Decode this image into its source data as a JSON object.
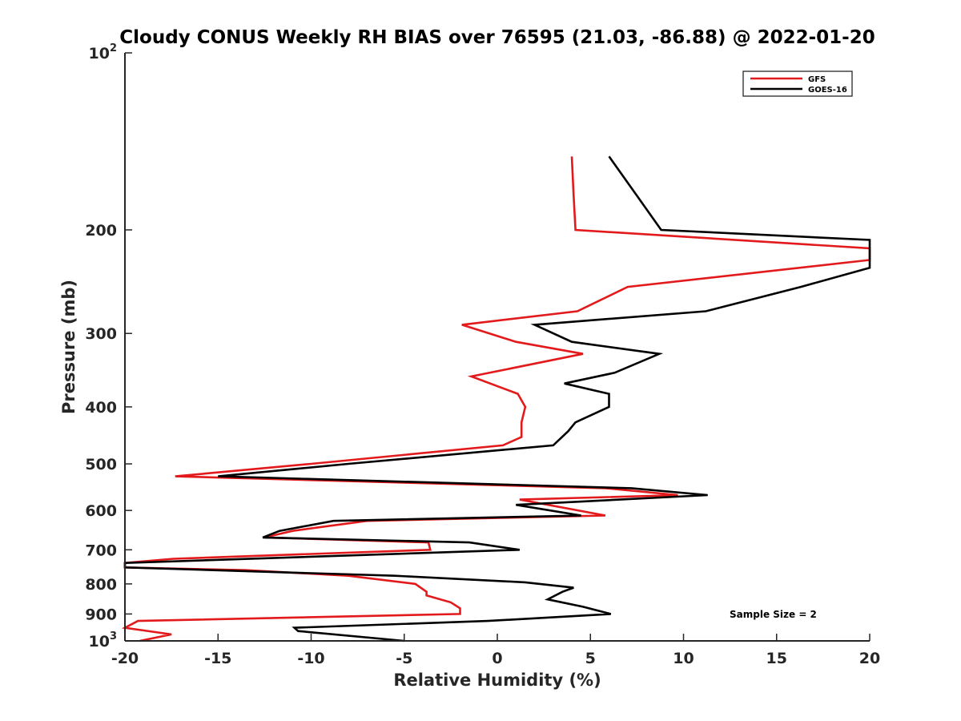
{
  "chart_data": {
    "type": "line",
    "title": "Cloudy CONUS Weekly RH BIAS over 76595 (21.03, -86.88) @ 2022-01-20",
    "xlabel": "Relative Humidity (%)",
    "ylabel": "Pressure (mb)",
    "xlim": [
      -20,
      20
    ],
    "ylim": [
      100,
      1000
    ],
    "yscale": "log",
    "y_reversed": true,
    "xticks": [
      -20,
      -15,
      -10,
      -5,
      0,
      5,
      10,
      15,
      20
    ],
    "xtick_labels": [
      "-20",
      "-15",
      "-10",
      "-5",
      "0",
      "5",
      "10",
      "15",
      "20"
    ],
    "yticks": [
      100,
      200,
      300,
      400,
      500,
      600,
      700,
      800,
      900,
      1000
    ],
    "ytick_labels": [
      {
        "base": "10",
        "sup": "2"
      },
      {
        "base": "200",
        "sup": ""
      },
      {
        "base": "300",
        "sup": ""
      },
      {
        "base": "400",
        "sup": ""
      },
      {
        "base": "500",
        "sup": ""
      },
      {
        "base": "600",
        "sup": ""
      },
      {
        "base": "700",
        "sup": ""
      },
      {
        "base": "800",
        "sup": ""
      },
      {
        "base": "900",
        "sup": ""
      },
      {
        "base": "10",
        "sup": "3"
      }
    ],
    "legend_position": "top-right",
    "annotation": "Sample Size = 2",
    "series": [
      {
        "name": "GFS",
        "color": "#e31a1c",
        "points": [
          [
            4,
            150
          ],
          [
            4.1,
            175
          ],
          [
            4.2,
            200
          ],
          [
            20,
            215
          ],
          [
            20,
            225
          ],
          [
            7,
            250
          ],
          [
            4.3,
            275
          ],
          [
            -1.9,
            290
          ],
          [
            1,
            310
          ],
          [
            4.6,
            325
          ],
          [
            -1.4,
            355
          ],
          [
            1.1,
            380
          ],
          [
            1.5,
            400
          ],
          [
            1.3,
            425
          ],
          [
            1.3,
            450
          ],
          [
            0.3,
            465
          ],
          [
            -10,
            500
          ],
          [
            -17.3,
            525
          ],
          [
            5.8,
            550
          ],
          [
            9.7,
            565
          ],
          [
            1.2,
            575
          ],
          [
            5.8,
            612
          ],
          [
            -7,
            625
          ],
          [
            -11,
            650
          ],
          [
            -12.5,
            667
          ],
          [
            -3.7,
            680
          ],
          [
            -3.6,
            700
          ],
          [
            -17.4,
            725
          ],
          [
            -20,
            737
          ],
          [
            -20,
            750
          ],
          [
            -13.5,
            758
          ],
          [
            -8,
            775
          ],
          [
            -4.4,
            800
          ],
          [
            -3.8,
            825
          ],
          [
            -3.8,
            837
          ],
          [
            -2.5,
            860
          ],
          [
            -2.0,
            880
          ],
          [
            -2.0,
            900
          ],
          [
            -19.3,
            925
          ],
          [
            -20,
            950
          ],
          [
            -17.5,
            975
          ],
          [
            -19.2,
            1000
          ]
        ]
      },
      {
        "name": "GOES-16",
        "color": "#000000",
        "points": [
          [
            6,
            150
          ],
          [
            7.5,
            175
          ],
          [
            8.8,
            200
          ],
          [
            20,
            208
          ],
          [
            20,
            232
          ],
          [
            16.3,
            250
          ],
          [
            11.2,
            275
          ],
          [
            2,
            290
          ],
          [
            4,
            310
          ],
          [
            8.7,
            325
          ],
          [
            6.3,
            350
          ],
          [
            3.6,
            365
          ],
          [
            6.0,
            380
          ],
          [
            6.0,
            400
          ],
          [
            4.2,
            425
          ],
          [
            3.8,
            440
          ],
          [
            3.0,
            465
          ],
          [
            -8,
            500
          ],
          [
            -15,
            525
          ],
          [
            7.2,
            550
          ],
          [
            11.3,
            565
          ],
          [
            1.0,
            587
          ],
          [
            4.5,
            612
          ],
          [
            -8.8,
            625
          ],
          [
            -11.7,
            650
          ],
          [
            -12.6,
            667
          ],
          [
            -1.5,
            680
          ],
          [
            1.2,
            700
          ],
          [
            -20,
            737
          ],
          [
            -20,
            750
          ],
          [
            -5.5,
            775
          ],
          [
            1.5,
            795
          ],
          [
            4.1,
            812
          ],
          [
            3.5,
            825
          ],
          [
            2.7,
            850
          ],
          [
            4.6,
            875
          ],
          [
            6.1,
            900
          ],
          [
            -0.5,
            925
          ],
          [
            -10.9,
            950
          ],
          [
            -10.7,
            962
          ],
          [
            -5,
            1000
          ]
        ]
      }
    ]
  }
}
